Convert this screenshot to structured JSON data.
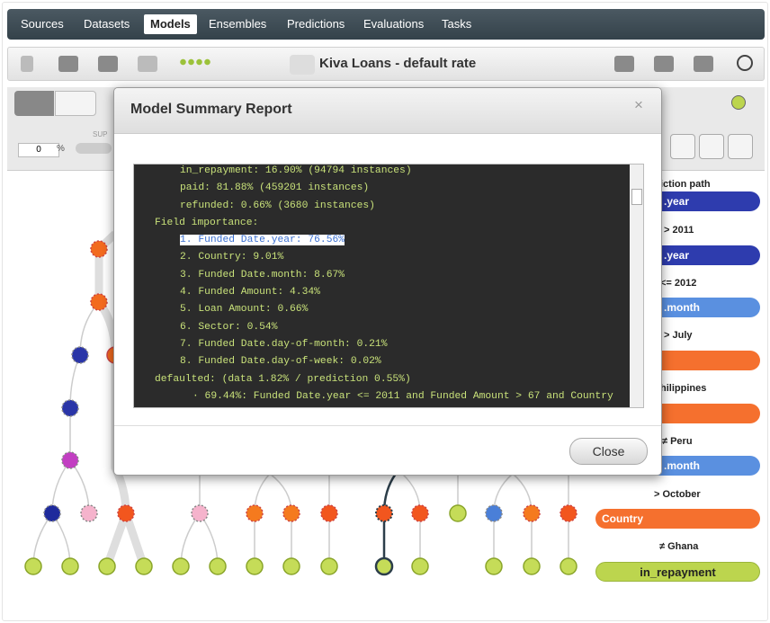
{
  "nav": {
    "tabs": [
      "Sources",
      "Datasets",
      "Models",
      "Ensembles",
      "Predictions",
      "Evaluations",
      "Tasks"
    ]
  },
  "toolbar": {
    "title": "Kiva Loans - default rate"
  },
  "controls": {
    "threshold": "0",
    "unit": "%",
    "support": "SUP"
  },
  "modal": {
    "title": "Model Summary Report",
    "close_icon": "×",
    "lines": [
      "in_repayment: 16.90% (94794 instances)",
      "paid: 81.88% (459201 instances)",
      "refunded: 0.66% (3680 instances)",
      "Field importance:",
      "1. Funded Date.year: 76.56%",
      "2. Country: 9.01%",
      "3. Funded Date.month: 8.67%",
      "4. Funded Amount: 4.34%",
      "5. Loan Amount: 0.66%",
      "6. Sector: 0.54%",
      "7. Funded Date.day-of-month: 0.21%",
      "8. Funded Date.day-of-week: 0.02%",
      "defaulted: (data 1.82% / prediction 0.55%)",
      "· 69.44%: Funded Date.year <= 2011 and Funded Amount > 67 and Country"
    ],
    "button": "Close"
  },
  "prediction_path": {
    "header": "iction path",
    "items": [
      ".year",
      "> 2011",
      ".year",
      "<= 2012",
      ".month",
      "> July",
      "hilippines",
      "≠ Peru",
      ".month",
      "> October",
      "Country",
      "≠ Ghana",
      "in_repayment"
    ]
  }
}
